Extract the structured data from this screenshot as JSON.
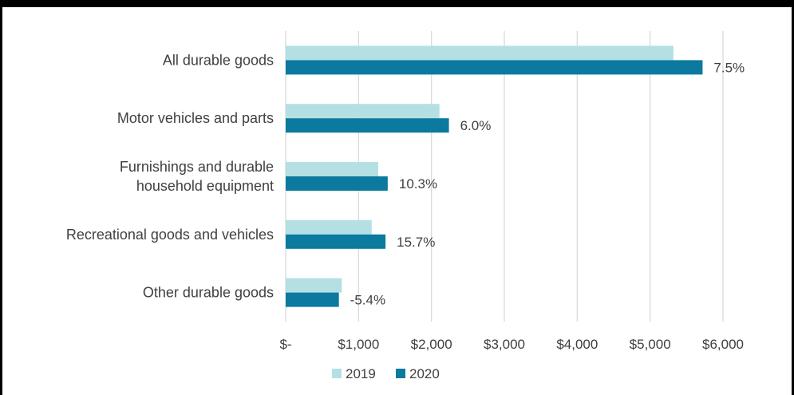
{
  "chart_data": {
    "type": "bar",
    "orientation": "horizontal",
    "categories": [
      [
        "All durable goods"
      ],
      [
        "Motor vehicles and parts"
      ],
      [
        "Furnishings and durable",
        "household equipment"
      ],
      [
        "Recreational goods and vehicles"
      ],
      [
        "Other durable goods"
      ]
    ],
    "series": [
      {
        "name": "2019",
        "values": [
          5320,
          2110,
          1270,
          1180,
          770
        ],
        "color": "#b4e0e3"
      },
      {
        "name": "2020",
        "values": [
          5720,
          2240,
          1400,
          1370,
          730
        ],
        "color": "#0b7a9e"
      }
    ],
    "data_labels": [
      "7.5%",
      "6.0%",
      "10.3%",
      "15.7%",
      "-5.4%"
    ],
    "x_ticks": [
      0,
      1000,
      2000,
      3000,
      4000,
      5000,
      6000
    ],
    "x_tick_labels": [
      "$-",
      "$1,000",
      "$2,000",
      "$3,000",
      "$4,000",
      "$5,000",
      "$6,000"
    ],
    "xlim": [
      0,
      6000
    ],
    "grid": "vertical",
    "legend_position": "bottom"
  }
}
